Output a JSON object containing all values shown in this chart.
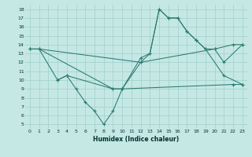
{
  "xlabel": "Humidex (Indice chaleur)",
  "xlim": [
    -0.5,
    23.5
  ],
  "ylim": [
    4.5,
    18.5
  ],
  "xticks": [
    0,
    1,
    2,
    3,
    4,
    5,
    6,
    7,
    8,
    9,
    10,
    11,
    12,
    13,
    14,
    15,
    16,
    17,
    18,
    19,
    20,
    21,
    22,
    23
  ],
  "yticks": [
    5,
    6,
    7,
    8,
    9,
    10,
    11,
    12,
    13,
    14,
    15,
    16,
    17,
    18
  ],
  "bg_color": "#c5e8e5",
  "line_color": "#2a7a70",
  "grid_color": "#9fcfcc",
  "line1_x": [
    0,
    1,
    3,
    4,
    9,
    10,
    12,
    13,
    14,
    15,
    16,
    17,
    18,
    19,
    20,
    21,
    23
  ],
  "line1_y": [
    13.5,
    13.5,
    10.0,
    10.5,
    9.0,
    9.0,
    12.0,
    13.0,
    18.0,
    17.0,
    17.0,
    15.5,
    14.5,
    13.5,
    13.5,
    12.0,
    14.0
  ],
  "line2_x": [
    3,
    4,
    5,
    6,
    7,
    8,
    9,
    10,
    12,
    13,
    14,
    15,
    16,
    17,
    18,
    19,
    21,
    23
  ],
  "line2_y": [
    10.0,
    10.5,
    9.0,
    7.5,
    6.5,
    5.0,
    6.5,
    9.0,
    12.5,
    13.0,
    18.0,
    17.0,
    17.0,
    15.5,
    14.5,
    13.5,
    10.5,
    9.5
  ],
  "line3_x": [
    0,
    1,
    9,
    10,
    22,
    23
  ],
  "line3_y": [
    13.5,
    13.5,
    9.0,
    9.0,
    9.5,
    9.5
  ],
  "line4_x": [
    0,
    1,
    12,
    20,
    22,
    23
  ],
  "line4_y": [
    13.5,
    13.5,
    12.0,
    13.5,
    14.0,
    14.0
  ]
}
